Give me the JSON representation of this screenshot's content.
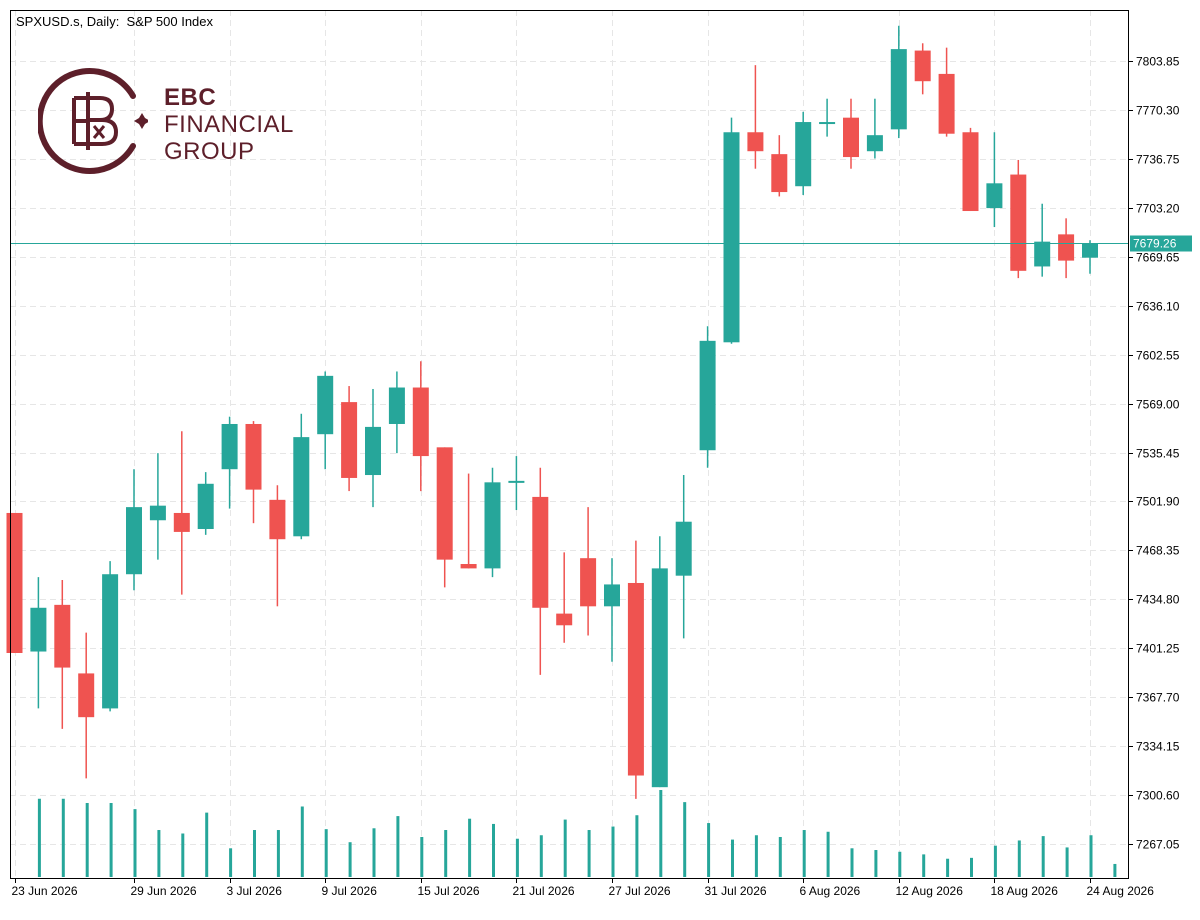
{
  "chart": {
    "title": "SPXUSD.s, Daily:  S&P 500 Index",
    "current_price_label": "7679.26"
  },
  "logo": {
    "line1": "EBC",
    "line2": "FINANCIAL",
    "line3": "GROUP"
  },
  "colors": {
    "bull": "#26a69a",
    "bear": "#ef5350",
    "grid": "#e6e6e6",
    "axis": "#000000",
    "current_price": "#26a69a",
    "logo": "#5d1f2a"
  },
  "chart_data": {
    "type": "candlestick",
    "title": "SPXUSD.s, Daily:  S&P 500 Index",
    "ylim": [
      7225,
      7830
    ],
    "grid": true,
    "y_ticks": [
      "7803.85",
      "7770.30",
      "7736.75",
      "7703.20",
      "7669.65",
      "7636.10",
      "7602.55",
      "7569.00",
      "7535.45",
      "7501.90",
      "7468.35",
      "7434.80",
      "7401.25",
      "7367.70",
      "7334.15",
      "7300.60",
      "7267.05"
    ],
    "x_tick_labels": [
      "23 Jun 2026",
      "29 Jun 2026",
      "3 Jul 2026",
      "9 Jul 2026",
      "15 Jul 2026",
      "21 Jul 2026",
      "27 Jul 2026",
      "31 Jul 2026",
      "6 Aug 2026",
      "12 Aug 2026",
      "18 Aug 2026",
      "24 Aug 2026"
    ],
    "x_tick_index": [
      0,
      5,
      9,
      13,
      17,
      21,
      25,
      29,
      33,
      37,
      41,
      45
    ],
    "current_price": 7679.26,
    "candles": [
      {
        "o": 7494,
        "h": 7494,
        "l": 7398,
        "c": 7398
      },
      {
        "o": 7399,
        "h": 7450,
        "l": 7360,
        "c": 7429
      },
      {
        "o": 7431,
        "h": 7448,
        "l": 7346,
        "c": 7388
      },
      {
        "o": 7384,
        "h": 7412,
        "l": 7312,
        "c": 7354
      },
      {
        "o": 7360,
        "h": 7461,
        "l": 7358,
        "c": 7452
      },
      {
        "o": 7452,
        "h": 7524,
        "l": 7441,
        "c": 7498
      },
      {
        "o": 7489,
        "h": 7535,
        "l": 7462,
        "c": 7499
      },
      {
        "o": 7494,
        "h": 7550,
        "l": 7438,
        "c": 7481
      },
      {
        "o": 7483,
        "h": 7522,
        "l": 7479,
        "c": 7514
      },
      {
        "o": 7524,
        "h": 7560,
        "l": 7497,
        "c": 7555
      },
      {
        "o": 7555,
        "h": 7557,
        "l": 7487,
        "c": 7510
      },
      {
        "o": 7503,
        "h": 7513,
        "l": 7430,
        "c": 7476
      },
      {
        "o": 7478,
        "h": 7562,
        "l": 7476,
        "c": 7546
      },
      {
        "o": 7548,
        "h": 7591,
        "l": 7524,
        "c": 7588
      },
      {
        "o": 7570,
        "h": 7581,
        "l": 7509,
        "c": 7518
      },
      {
        "o": 7520,
        "h": 7579,
        "l": 7498,
        "c": 7553
      },
      {
        "o": 7555,
        "h": 7591,
        "l": 7535,
        "c": 7580
      },
      {
        "o": 7580,
        "h": 7598,
        "l": 7509,
        "c": 7533
      },
      {
        "o": 7539,
        "h": 7539,
        "l": 7443,
        "c": 7462
      },
      {
        "o": 7459,
        "h": 7521,
        "l": 7456,
        "c": 7456
      },
      {
        "o": 7456,
        "h": 7525,
        "l": 7450,
        "c": 7515
      },
      {
        "o": 7516,
        "h": 7533,
        "l": 7496,
        "c": 7516
      },
      {
        "o": 7505,
        "h": 7525,
        "l": 7383,
        "c": 7429
      },
      {
        "o": 7425,
        "h": 7467,
        "l": 7405,
        "c": 7417
      },
      {
        "o": 7463,
        "h": 7498,
        "l": 7410,
        "c": 7430
      },
      {
        "o": 7430,
        "h": 7463,
        "l": 7392,
        "c": 7445
      },
      {
        "o": 7446,
        "h": 7475,
        "l": 7298,
        "c": 7314
      },
      {
        "o": 7306,
        "h": 7478,
        "l": 7306,
        "c": 7456
      },
      {
        "o": 7451,
        "h": 7520,
        "l": 7408,
        "c": 7488
      },
      {
        "o": 7537,
        "h": 7622,
        "l": 7525,
        "c": 7612
      },
      {
        "o": 7611,
        "h": 7765,
        "l": 7610,
        "c": 7755
      },
      {
        "o": 7755,
        "h": 7801,
        "l": 7730,
        "c": 7742
      },
      {
        "o": 7740,
        "h": 7753,
        "l": 7711,
        "c": 7714
      },
      {
        "o": 7718,
        "h": 7769,
        "l": 7712,
        "c": 7762
      },
      {
        "o": 7762,
        "h": 7778,
        "l": 7752,
        "c": 7762
      },
      {
        "o": 7765,
        "h": 7778,
        "l": 7730,
        "c": 7738
      },
      {
        "o": 7742,
        "h": 7778,
        "l": 7737,
        "c": 7753
      },
      {
        "o": 7757,
        "h": 7828,
        "l": 7751,
        "c": 7812
      },
      {
        "o": 7811,
        "h": 7816,
        "l": 7781,
        "c": 7790
      },
      {
        "o": 7795,
        "h": 7813,
        "l": 7752,
        "c": 7754
      },
      {
        "o": 7755,
        "h": 7758,
        "l": 7701,
        "c": 7701
      },
      {
        "o": 7703,
        "h": 7755,
        "l": 7690,
        "c": 7720
      },
      {
        "o": 7726,
        "h": 7736,
        "l": 7655,
        "c": 7660
      },
      {
        "o": 7663,
        "h": 7706,
        "l": 7656,
        "c": 7680
      },
      {
        "o": 7685,
        "h": 7696,
        "l": 7655,
        "c": 7667
      },
      {
        "o": 7669,
        "h": 7681,
        "l": 7658,
        "c": 7679
      }
    ],
    "volume": [
      {
        "v": 0.9,
        "bear": true
      },
      {
        "v": 0.9,
        "bear": false
      },
      {
        "v": 0.85,
        "bear": true
      },
      {
        "v": 0.85,
        "bear": true
      },
      {
        "v": 0.78,
        "bear": false
      },
      {
        "v": 0.54,
        "bear": false
      },
      {
        "v": 0.5,
        "bear": true
      },
      {
        "v": 0.74,
        "bear": true
      },
      {
        "v": 0.33,
        "bear": false
      },
      {
        "v": 0.54,
        "bear": false
      },
      {
        "v": 0.54,
        "bear": true
      },
      {
        "v": 0.81,
        "bear": true
      },
      {
        "v": 0.55,
        "bear": false
      },
      {
        "v": 0.4,
        "bear": false
      },
      {
        "v": 0.56,
        "bear": true
      },
      {
        "v": 0.7,
        "bear": false
      },
      {
        "v": 0.46,
        "bear": false
      },
      {
        "v": 0.54,
        "bear": true
      },
      {
        "v": 0.67,
        "bear": true
      },
      {
        "v": 0.61,
        "bear": true
      },
      {
        "v": 0.44,
        "bear": false
      },
      {
        "v": 0.48,
        "bear": true
      },
      {
        "v": 0.66,
        "bear": true
      },
      {
        "v": 0.54,
        "bear": true
      },
      {
        "v": 0.58,
        "bear": false
      },
      {
        "v": 0.71,
        "bear": true
      },
      {
        "v": 1.0,
        "bear": false
      },
      {
        "v": 0.86,
        "bear": false
      },
      {
        "v": 0.62,
        "bear": false
      },
      {
        "v": 0.43,
        "bear": false
      },
      {
        "v": 0.48,
        "bear": true
      },
      {
        "v": 0.46,
        "bear": false
      },
      {
        "v": 0.54,
        "bear": true
      },
      {
        "v": 0.52,
        "bear": false
      },
      {
        "v": 0.33,
        "bear": false
      },
      {
        "v": 0.31,
        "bear": true
      },
      {
        "v": 0.29,
        "bear": false
      },
      {
        "v": 0.26,
        "bear": false
      },
      {
        "v": 0.21,
        "bear": true
      },
      {
        "v": 0.22,
        "bear": true
      },
      {
        "v": 0.36,
        "bear": true
      },
      {
        "v": 0.42,
        "bear": false
      },
      {
        "v": 0.47,
        "bear": true
      },
      {
        "v": 0.34,
        "bear": false
      },
      {
        "v": 0.48,
        "bear": true
      },
      {
        "v": 0.15,
        "bear": false
      }
    ]
  }
}
